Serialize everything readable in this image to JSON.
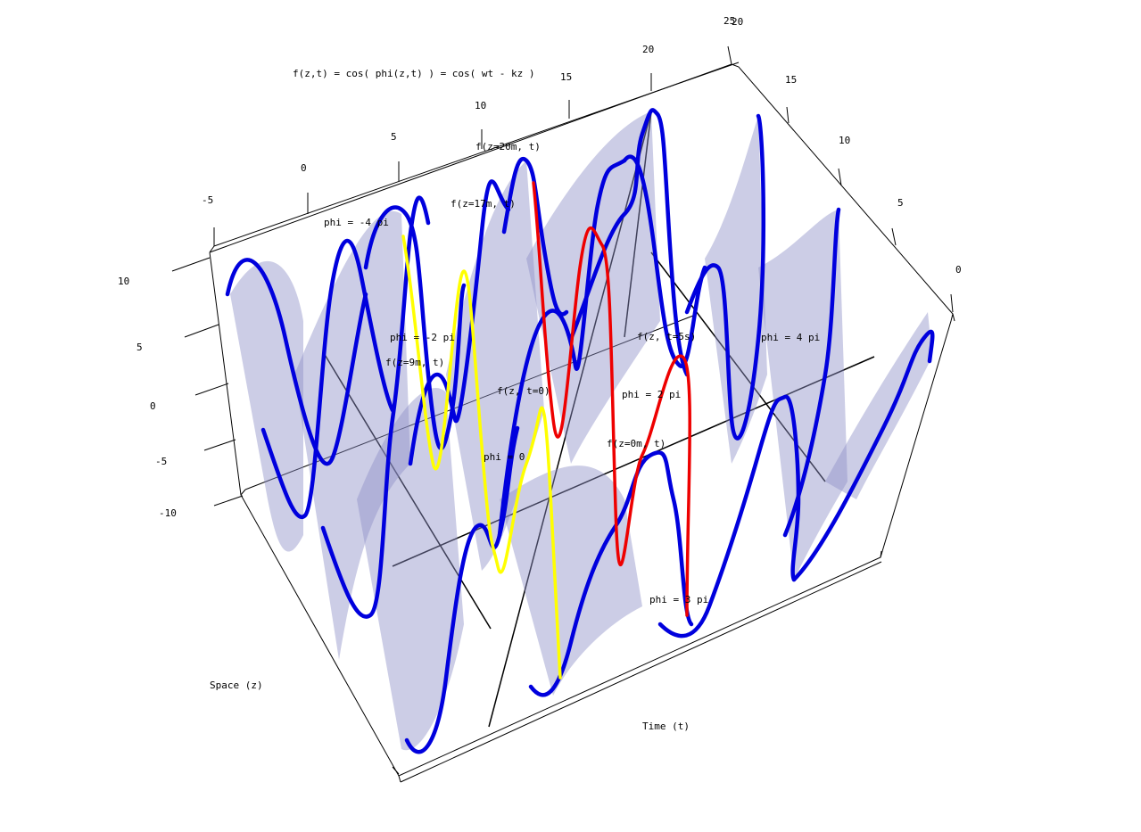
{
  "chart_data": {
    "type": "surface3d",
    "title": "f(z,t) = cos( phi(z,t) ) = cos( wt - kz )",
    "xlabel": "Space (z)",
    "ylabel": "Time (t)",
    "zlabel": "",
    "axes": {
      "space_ticks": [
        "-5",
        "0",
        "5",
        "10",
        "15",
        "20",
        "25"
      ],
      "time_ticks": [
        "0",
        "5",
        "10",
        "15",
        "20"
      ],
      "f_ticks": [
        "10",
        "5",
        "0",
        "-5",
        "-10"
      ]
    },
    "annotations": [
      "phi = -4 pi",
      "phi = -2 pi",
      "phi = 0",
      "phi = 2 pi",
      "phi = 4 pi",
      "phi = 3 pi",
      "f(z=20m, t)",
      "f(z=17m, t)",
      "f(z=9m, t)",
      "f(z=0m, t)",
      "f(z, t=0)",
      "f(z, t=5s)"
    ],
    "series": [
      {
        "color": "#0000dd",
        "style": "cosine traces at fixed z and at fixed t"
      },
      {
        "color": "#ffff00",
        "style": "highlighted trace"
      },
      {
        "color": "#ee0000",
        "style": "highlighted trace"
      },
      {
        "color": "#000000",
        "style": "phase lines"
      }
    ],
    "surface_color": "#9fa0d0"
  }
}
